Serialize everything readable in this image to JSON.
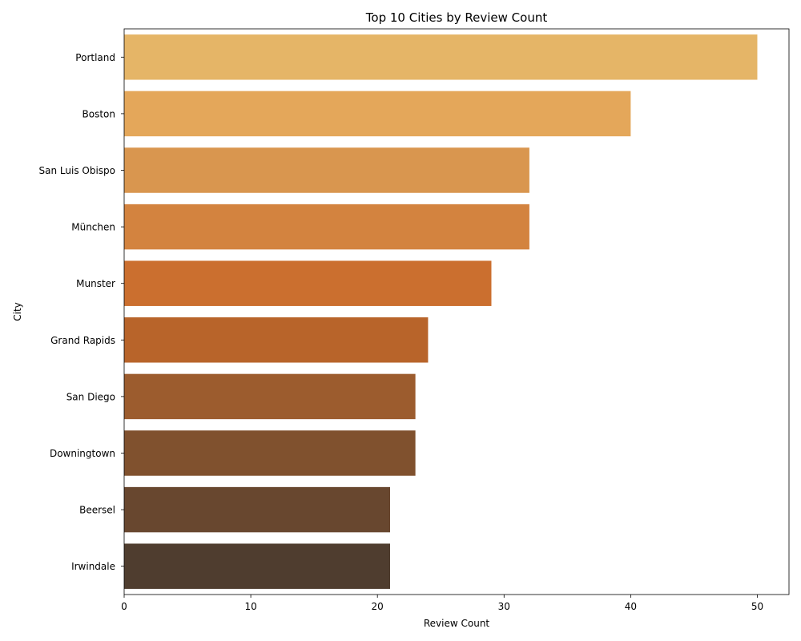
{
  "chart_data": {
    "type": "bar",
    "orientation": "horizontal",
    "title": "Top 10 Cities by Review Count",
    "xlabel": "Review Count",
    "ylabel": "City",
    "categories": [
      "Portland",
      "Boston",
      "San Luis Obispo",
      "München",
      "Munster",
      "Grand Rapids",
      "San Diego",
      "Downingtown",
      "Beersel",
      "Irwindale"
    ],
    "values": [
      50,
      40,
      32,
      32,
      29,
      24,
      23,
      23,
      21,
      21
    ],
    "colors": [
      "#e5b567",
      "#e4a75a",
      "#d9964f",
      "#d3833f",
      "#cb6f2f",
      "#b8642a",
      "#9c5c2e",
      "#80512e",
      "#68472f",
      "#4f3d2f"
    ],
    "xlim": [
      0,
      52.5
    ],
    "xticks": [
      0,
      10,
      20,
      30,
      40,
      50
    ],
    "grid": false,
    "legend": "none"
  }
}
